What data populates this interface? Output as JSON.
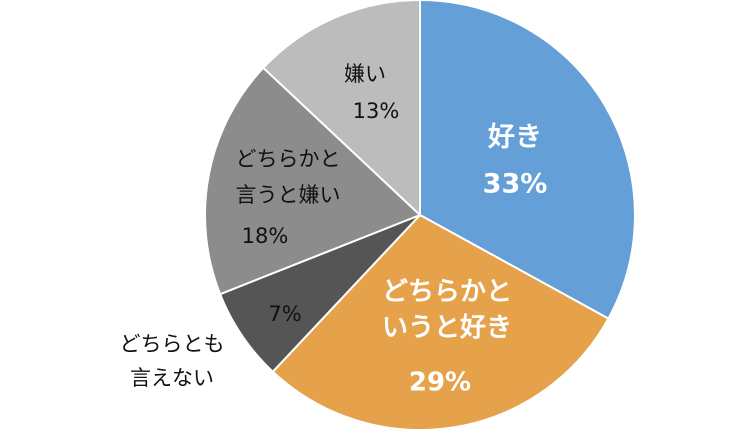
{
  "chart_data": {
    "type": "pie",
    "categories": [
      "好き",
      "どちらかと\nいうと好き",
      "どちらとも\n言えない",
      "どちらかと\n言うと嫌い",
      "嫌い"
    ],
    "values": [
      33,
      29,
      7,
      18,
      13
    ],
    "value_labels": [
      "33%",
      "29%",
      "7%",
      "18%",
      "13%"
    ],
    "colors": [
      "#659fd8",
      "#e6a24b",
      "#555555",
      "#8c8c8c",
      "#bcbcbc"
    ]
  }
}
